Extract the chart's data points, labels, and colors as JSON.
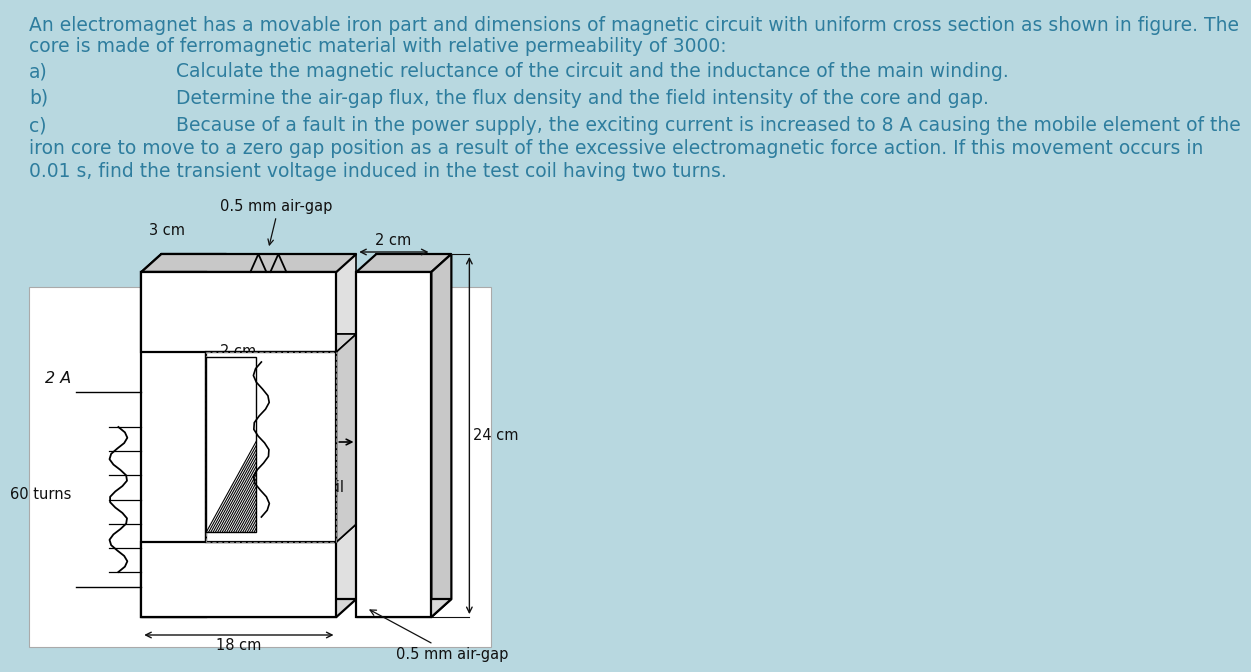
{
  "background_color": "#b8d8e0",
  "text_color": "#2e7d9e",
  "diagram_bg": "white",
  "title_line1": "An electromagnet has a movable iron part and dimensions of magnetic circuit with uniform cross section as shown in figure. The",
  "title_line2": "core is made of ferromagnetic material with relative permeability of 3000:",
  "item_a_label": "a)",
  "item_a_text": "Calculate the magnetic reluctance of the circuit and the inductance of the main winding.",
  "item_b_label": "b)",
  "item_b_text": "Determine the air-gap flux, the flux density and the field intensity of the core and gap.",
  "item_c_label": "c)",
  "item_c_line1": "Because of a fault in the power supply, the exciting current is increased to 8 A causing the mobile element of the",
  "item_c_line2": "iron core to move to a zero gap position as a result of the excessive electromagnetic force action. If this movement occurs in",
  "item_c_line3": "0.01 s, find the transient voltage induced in the test coil having two turns.",
  "label_3cm": "3 cm",
  "label_2cm_top": "2 cm",
  "label_2cm_inner": "2 cm",
  "label_2A": "2 A",
  "label_60turns": "60 turns",
  "label_test_coil": "test coil",
  "label_18cm": "18 cm",
  "label_24cm": "24 cm",
  "label_gap_top": "0.5 mm air-gap",
  "label_gap_bottom": "0.5 mm air-gap",
  "font_size_text": 13.5,
  "font_size_label": 10.5
}
